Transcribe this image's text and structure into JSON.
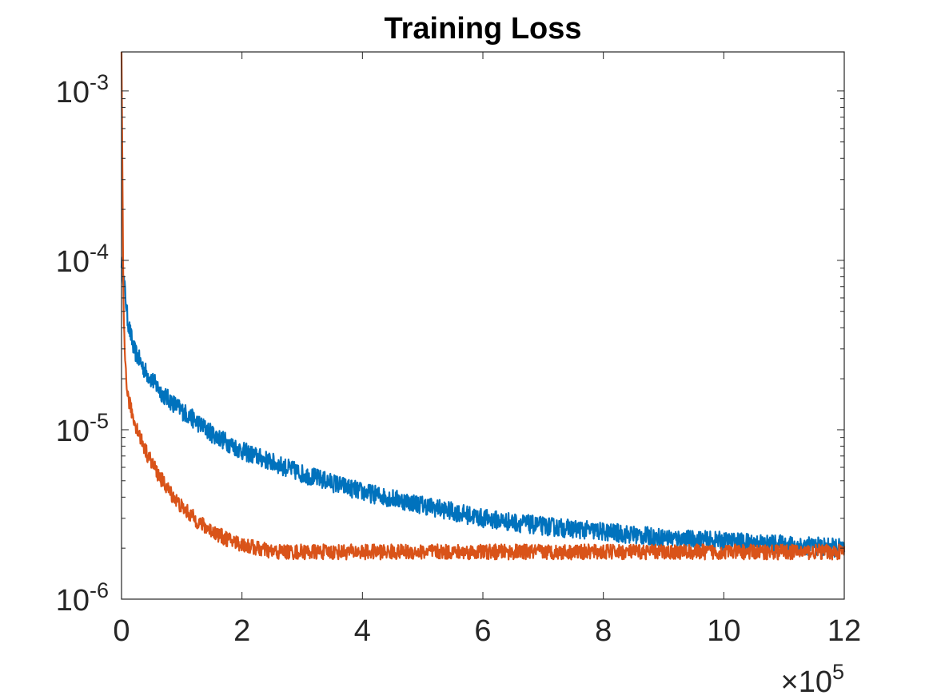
{
  "chart_data": {
    "type": "line",
    "title": "Training Loss",
    "xlabel": "",
    "ylabel": "",
    "xlim": [
      0,
      1200000
    ],
    "ylim": [
      1e-06,
      0.0017
    ],
    "y_scale": "log",
    "x_ticks": [
      0,
      200000,
      400000,
      600000,
      800000,
      1000000,
      1200000
    ],
    "x_tick_labels": [
      "0",
      "2",
      "4",
      "6",
      "8",
      "10",
      "12"
    ],
    "x_multiplier": {
      "base": "×10",
      "exponent": "5"
    },
    "y_ticks": [
      1e-06,
      1e-05,
      0.0001,
      0.001
    ],
    "y_tick_labels": [
      {
        "base": "10",
        "exponent": "-6"
      },
      {
        "base": "10",
        "exponent": "-5"
      },
      {
        "base": "10",
        "exponent": "-4"
      },
      {
        "base": "10",
        "exponent": "-3"
      }
    ],
    "grid": false,
    "legend": "none",
    "series": [
      {
        "color": "#0072BD",
        "x": [
          0,
          5000,
          10000,
          20000,
          40000,
          70000,
          100000,
          150000,
          200000,
          300000,
          400000,
          500000,
          600000,
          700000,
          800000,
          900000,
          1000000,
          1100000,
          1200000
        ],
        "y": [
          0.0001,
          7e-05,
          4.5e-05,
          3e-05,
          2.2e-05,
          1.6e-05,
          1.3e-05,
          9.5e-06,
          7.5e-06,
          5.5e-06,
          4.3e-06,
          3.6e-06,
          3e-06,
          2.7e-06,
          2.5e-06,
          2.3e-06,
          2.2e-06,
          2.1e-06,
          2e-06
        ]
      },
      {
        "color": "#D95319",
        "x": [
          0,
          3000,
          5000,
          10000,
          20000,
          40000,
          60000,
          80000,
          100000,
          130000,
          170000,
          200000,
          250000,
          300000,
          400000,
          500000,
          600000,
          700000,
          800000,
          900000,
          1000000,
          1100000,
          1200000
        ],
        "y": [
          0.0017,
          6e-05,
          3e-05,
          1.6e-05,
          1.15e-05,
          7.5e-06,
          5.5e-06,
          4.3e-06,
          3.5e-06,
          2.8e-06,
          2.3e-06,
          2.1e-06,
          1.9e-06,
          1.9e-06,
          1.9e-06,
          1.9e-06,
          1.9e-06,
          1.9e-06,
          1.9e-06,
          1.9e-06,
          1.9e-06,
          1.9e-06,
          1.9e-06
        ]
      }
    ]
  }
}
